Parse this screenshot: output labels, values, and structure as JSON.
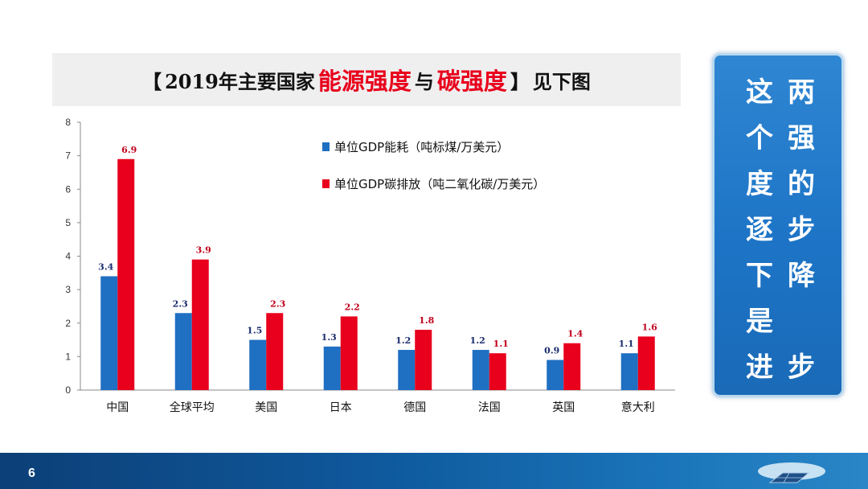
{
  "title": {
    "bracket_open": "【",
    "part1": "2019年主要国家",
    "highlight1": "能源强度",
    "part2": "与",
    "highlight2": "碳强度",
    "bracket_close": "】",
    "part3": "见下图"
  },
  "side_text": {
    "left": [
      "这",
      "个",
      "度",
      "逐",
      "下",
      "是",
      "进"
    ],
    "right": [
      "两",
      "强",
      "的",
      "步",
      "降",
      "",
      "步"
    ]
  },
  "page_number": "6",
  "colors": {
    "energy": "#1f6fc2",
    "carbon": "#e8001c",
    "accent": "#e8001c"
  },
  "chart_data": {
    "type": "bar",
    "categories": [
      "中国",
      "全球平均",
      "美国",
      "日本",
      "德国",
      "法国",
      "英国",
      "意大利"
    ],
    "series": [
      {
        "name": "单位GDP能耗（吨标煤/万美元）",
        "values": [
          3.4,
          2.3,
          1.5,
          1.3,
          1.2,
          1.2,
          0.9,
          1.1
        ],
        "labels": [
          "3.4",
          "2.3",
          "1.5",
          "1.3",
          "1.2",
          "1.2",
          "0.9",
          "1.1"
        ]
      },
      {
        "name": "单位GDP碳排放（吨二氧化碳/万美元）",
        "values": [
          6.9,
          3.9,
          2.3,
          2.2,
          1.8,
          1.1,
          1.4,
          1.6
        ],
        "labels": [
          "6.9",
          "3.9",
          "2.3",
          "2.2",
          "1.8",
          "1.1",
          "1.4",
          "1.6"
        ]
      }
    ],
    "yticks": [
      "0",
      "1",
      "2",
      "3",
      "4",
      "5",
      "6",
      "7",
      "8"
    ],
    "ylim": [
      0,
      8
    ],
    "legend_position": "top-center"
  }
}
